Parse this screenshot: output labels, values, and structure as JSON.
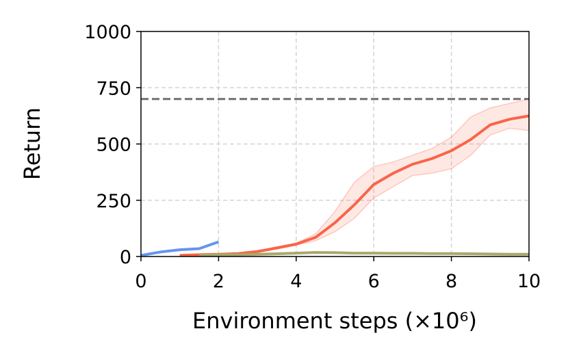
{
  "chart_data": {
    "type": "line",
    "xlabel": "Environment steps (×10⁶)",
    "ylabel": "Return",
    "x": [
      0,
      0.5,
      1,
      1.5,
      2,
      2.5,
      3,
      3.5,
      4,
      4.5,
      5,
      5.5,
      6,
      6.5,
      7,
      7.5,
      8,
      8.5,
      9,
      9.5,
      10
    ],
    "series": [
      {
        "color": "#fa6447",
        "values": [
          null,
          null,
          5,
          8,
          10,
          13,
          22,
          38,
          55,
          85,
          150,
          230,
          320,
          370,
          410,
          435,
          470,
          520,
          585,
          610,
          625
        ],
        "lower": [
          null,
          null,
          4,
          6,
          8,
          11,
          18,
          33,
          50,
          70,
          110,
          170,
          260,
          310,
          360,
          370,
          390,
          450,
          540,
          570,
          560
        ],
        "upper": [
          null,
          null,
          6,
          10,
          12,
          16,
          26,
          43,
          60,
          100,
          200,
          330,
          400,
          420,
          450,
          480,
          530,
          620,
          660,
          680,
          700
        ]
      },
      {
        "color": "#a8a86a",
        "values": [
          null,
          null,
          null,
          5,
          8,
          8,
          10,
          12,
          15,
          18,
          17,
          15,
          15,
          14,
          14,
          13,
          13,
          12,
          11,
          10,
          10
        ]
      },
      {
        "color": "#6495ed",
        "values": [
          5,
          20,
          30,
          35,
          65,
          null,
          null,
          null,
          null,
          null,
          null,
          null,
          null,
          null,
          null,
          null,
          null,
          null,
          null,
          null,
          null
        ]
      }
    ],
    "hline": {
      "value": 700,
      "color": "#707070"
    },
    "xlim": [
      0,
      10
    ],
    "xticks": [
      0,
      2,
      4,
      6,
      8,
      10
    ],
    "ylim": [
      0,
      1000
    ],
    "yticks": [
      0,
      250,
      500,
      750,
      1000
    ],
    "grid": true
  }
}
